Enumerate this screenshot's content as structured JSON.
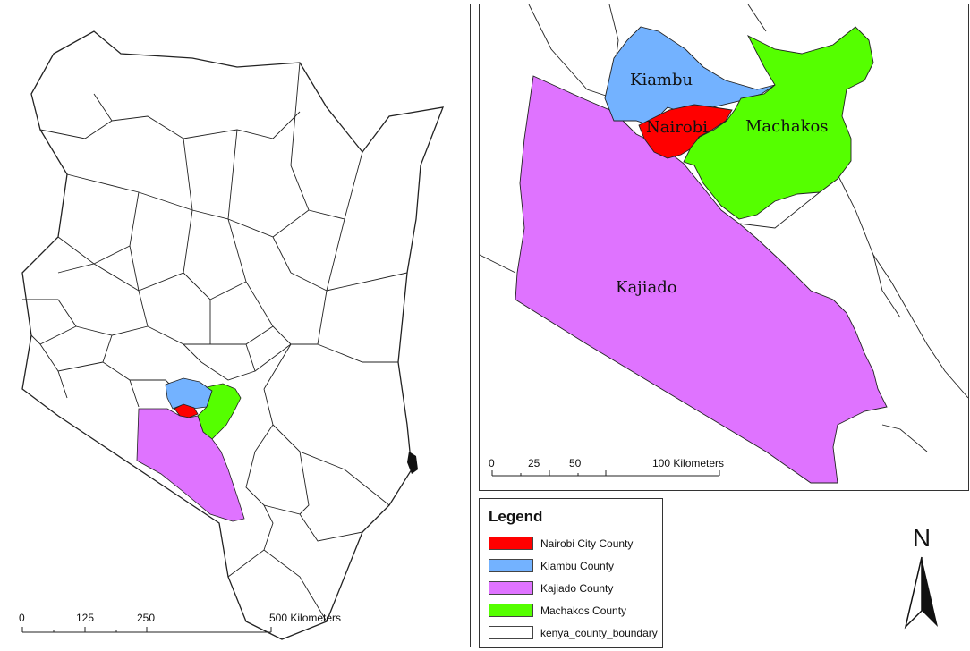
{
  "legend": {
    "title": "Legend",
    "items": [
      {
        "label": "Nairobi City County",
        "color": "#ff0000"
      },
      {
        "label": "Kiambu County",
        "color": "#73b2ff"
      },
      {
        "label": "Kajiado County",
        "color": "#df73ff"
      },
      {
        "label": "Machakos County",
        "color": "#55ff00"
      },
      {
        "label": "kenya_county_boundary",
        "color": "#ffffff"
      }
    ]
  },
  "main_scale": {
    "ticks": [
      "0",
      "125",
      "250",
      "500 Kilometers"
    ]
  },
  "inset_scale": {
    "ticks": [
      "0",
      "25",
      "50",
      "100 Kilometers"
    ]
  },
  "inset_labels": {
    "kiambu": "Kiambu",
    "nairobi": "Nairobi",
    "machakos": "Machakos",
    "kajiado": "Kajiado"
  },
  "north_arrow": {
    "label": "N"
  }
}
